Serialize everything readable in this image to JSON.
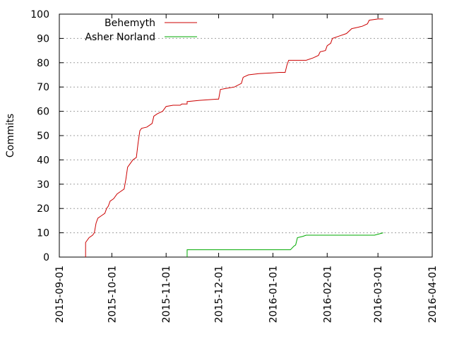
{
  "chart_data": {
    "type": "line",
    "title": "",
    "xlabel": "",
    "ylabel": "Commits",
    "x_type": "date",
    "xlim": [
      "2015-09-01",
      "2016-04-01"
    ],
    "ylim": [
      0,
      100
    ],
    "x_ticks": [
      "2015-09-01",
      "2015-10-01",
      "2015-11-01",
      "2015-12-01",
      "2016-01-01",
      "2016-02-01",
      "2016-03-01",
      "2016-04-01"
    ],
    "y_ticks": [
      0,
      10,
      20,
      30,
      40,
      50,
      60,
      70,
      80,
      90,
      100
    ],
    "grid": true,
    "legend": "top-left",
    "series": [
      {
        "name": "Behemyth",
        "color": "#cc0000",
        "points": [
          [
            "2015-09-16",
            0
          ],
          [
            "2015-09-16",
            6
          ],
          [
            "2015-09-18",
            8
          ],
          [
            "2015-09-20",
            9
          ],
          [
            "2015-09-21",
            10
          ],
          [
            "2015-09-22",
            14
          ],
          [
            "2015-09-23",
            16
          ],
          [
            "2015-09-25",
            17
          ],
          [
            "2015-09-27",
            18
          ],
          [
            "2015-09-28",
            20
          ],
          [
            "2015-09-29",
            21
          ],
          [
            "2015-09-30",
            23
          ],
          [
            "2015-10-02",
            24
          ],
          [
            "2015-10-04",
            26
          ],
          [
            "2015-10-06",
            27
          ],
          [
            "2015-10-08",
            28
          ],
          [
            "2015-10-09",
            32
          ],
          [
            "2015-10-10",
            37
          ],
          [
            "2015-10-11",
            38
          ],
          [
            "2015-10-13",
            40
          ],
          [
            "2015-10-15",
            41
          ],
          [
            "2015-10-16",
            47
          ],
          [
            "2015-10-17",
            52
          ],
          [
            "2015-10-18",
            53
          ],
          [
            "2015-10-21",
            53.5
          ],
          [
            "2015-10-24",
            55
          ],
          [
            "2015-10-25",
            58
          ],
          [
            "2015-10-27",
            59
          ],
          [
            "2015-10-30",
            60
          ],
          [
            "2015-11-01",
            62
          ],
          [
            "2015-11-05",
            62.5
          ],
          [
            "2015-11-09",
            62.5
          ],
          [
            "2015-11-10",
            63
          ],
          [
            "2015-11-13",
            63
          ],
          [
            "2015-11-13",
            64
          ],
          [
            "2015-11-20",
            64.5
          ],
          [
            "2015-11-30",
            65
          ],
          [
            "2015-12-01",
            65
          ],
          [
            "2015-12-02",
            69
          ],
          [
            "2015-12-06",
            69.5
          ],
          [
            "2015-12-10",
            70
          ],
          [
            "2015-12-14",
            71.5
          ],
          [
            "2015-12-15",
            74
          ],
          [
            "2015-12-18",
            75
          ],
          [
            "2015-12-24",
            75.5
          ],
          [
            "2016-01-05",
            76
          ],
          [
            "2016-01-08",
            76
          ],
          [
            "2016-01-09",
            79
          ],
          [
            "2016-01-10",
            81
          ],
          [
            "2016-01-20",
            81
          ],
          [
            "2016-01-24",
            82
          ],
          [
            "2016-01-27",
            83
          ],
          [
            "2016-01-28",
            84.5
          ],
          [
            "2016-01-31",
            85
          ],
          [
            "2016-02-01",
            87
          ],
          [
            "2016-02-03",
            88
          ],
          [
            "2016-02-04",
            90
          ],
          [
            "2016-02-08",
            91
          ],
          [
            "2016-02-12",
            92
          ],
          [
            "2016-02-15",
            94
          ],
          [
            "2016-02-21",
            95
          ],
          [
            "2016-02-24",
            96
          ],
          [
            "2016-02-25",
            97.5
          ],
          [
            "2016-03-01",
            98
          ],
          [
            "2016-03-04",
            98
          ]
        ]
      },
      {
        "name": "Asher Norland",
        "color": "#00aa00",
        "points": [
          [
            "2015-11-13",
            0
          ],
          [
            "2015-11-13",
            3
          ],
          [
            "2016-01-11",
            3
          ],
          [
            "2016-01-13",
            4.5
          ],
          [
            "2016-01-14",
            5
          ],
          [
            "2016-01-15",
            8
          ],
          [
            "2016-01-18",
            8.5
          ],
          [
            "2016-01-20",
            9
          ],
          [
            "2016-02-28",
            9
          ],
          [
            "2016-03-04",
            10
          ]
        ]
      }
    ]
  }
}
